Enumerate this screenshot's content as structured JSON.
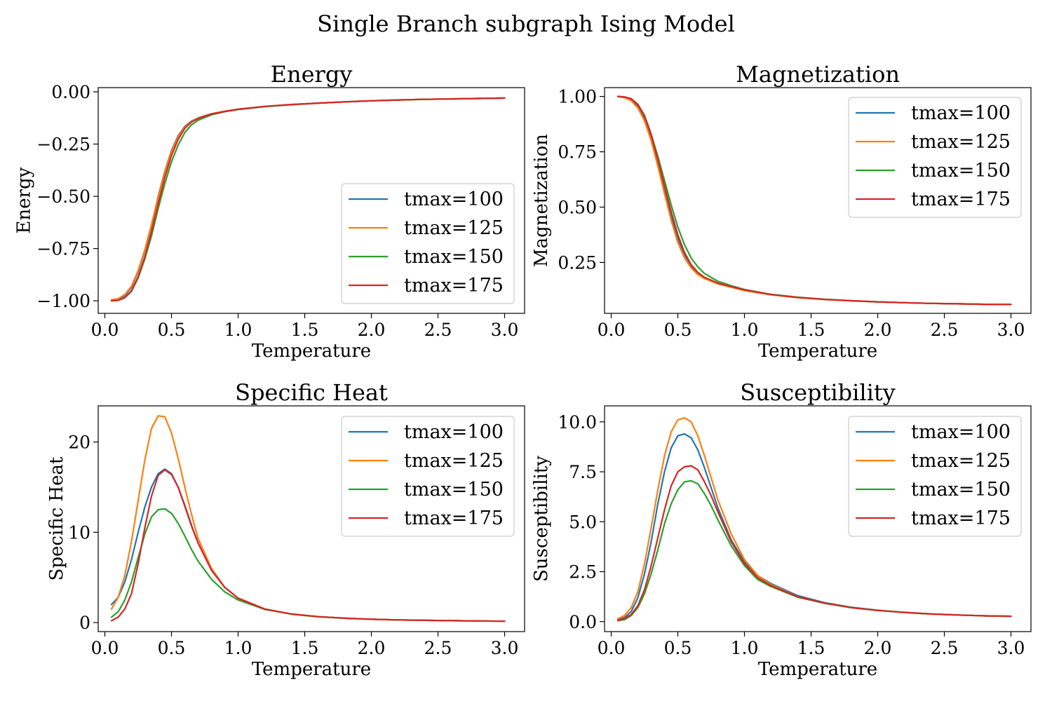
{
  "figure": {
    "title": "Single Branch subgraph Ising Model"
  },
  "colors": {
    "series": [
      "#1f77b4",
      "#ff7f0e",
      "#2ca02c",
      "#d62728"
    ]
  },
  "chart_data": [
    {
      "type": "line",
      "title": "Energy",
      "xlabel": "Temperature",
      "ylabel": "Energy",
      "xlim": [
        -0.05,
        3.15
      ],
      "ylim": [
        -1.06,
        0.02
      ],
      "xticks": [
        0.0,
        0.5,
        1.0,
        1.5,
        2.0,
        2.5,
        3.0
      ],
      "xtick_labels": [
        "0.0",
        "0.5",
        "1.0",
        "1.5",
        "2.0",
        "2.5",
        "3.0"
      ],
      "yticks": [
        0.0,
        -0.25,
        -0.5,
        -0.75,
        -1.0
      ],
      "ytick_labels": [
        "0.00",
        "−0.25",
        "−0.50",
        "−0.75",
        "−1.00"
      ],
      "legend": "lower-right",
      "grid": false,
      "x": [
        0.05,
        0.1,
        0.15,
        0.2,
        0.25,
        0.3,
        0.35,
        0.4,
        0.45,
        0.5,
        0.55,
        0.6,
        0.65,
        0.7,
        0.8,
        0.9,
        1.0,
        1.2,
        1.4,
        1.6,
        1.8,
        2.0,
        2.2,
        2.4,
        2.6,
        2.8,
        3.0
      ],
      "series": [
        {
          "name": "tmax=100",
          "values": [
            -1.0,
            -0.995,
            -0.975,
            -0.935,
            -0.86,
            -0.76,
            -0.64,
            -0.5,
            -0.38,
            -0.28,
            -0.21,
            -0.165,
            -0.14,
            -0.125,
            -0.105,
            -0.093,
            -0.083,
            -0.07,
            -0.061,
            -0.054,
            -0.048,
            -0.043,
            -0.039,
            -0.036,
            -0.034,
            -0.032,
            -0.03
          ]
        },
        {
          "name": "tmax=125",
          "values": [
            -0.995,
            -0.99,
            -0.97,
            -0.93,
            -0.855,
            -0.755,
            -0.635,
            -0.505,
            -0.385,
            -0.285,
            -0.215,
            -0.168,
            -0.142,
            -0.126,
            -0.105,
            -0.093,
            -0.083,
            -0.07,
            -0.061,
            -0.054,
            -0.048,
            -0.043,
            -0.039,
            -0.036,
            -0.034,
            -0.032,
            -0.03
          ]
        },
        {
          "name": "tmax=150",
          "values": [
            -1.0,
            -0.998,
            -0.985,
            -0.955,
            -0.89,
            -0.8,
            -0.69,
            -0.56,
            -0.44,
            -0.335,
            -0.255,
            -0.195,
            -0.158,
            -0.136,
            -0.11,
            -0.095,
            -0.085,
            -0.071,
            -0.062,
            -0.054,
            -0.048,
            -0.043,
            -0.039,
            -0.036,
            -0.034,
            -0.032,
            -0.03
          ]
        },
        {
          "name": "tmax=175",
          "values": [
            -1.0,
            -0.998,
            -0.985,
            -0.952,
            -0.885,
            -0.79,
            -0.67,
            -0.535,
            -0.41,
            -0.305,
            -0.228,
            -0.175,
            -0.145,
            -0.128,
            -0.106,
            -0.094,
            -0.084,
            -0.07,
            -0.061,
            -0.054,
            -0.048,
            -0.043,
            -0.039,
            -0.036,
            -0.034,
            -0.032,
            -0.03
          ]
        }
      ]
    },
    {
      "type": "line",
      "title": "Magnetization",
      "xlabel": "Temperature",
      "ylabel": "Magnetization",
      "xlim": [
        -0.05,
        3.15
      ],
      "ylim": [
        0.02,
        1.04
      ],
      "xticks": [
        0.0,
        0.5,
        1.0,
        1.5,
        2.0,
        2.5,
        3.0
      ],
      "xtick_labels": [
        "0.0",
        "0.5",
        "1.0",
        "1.5",
        "2.0",
        "2.5",
        "3.0"
      ],
      "yticks": [
        1.0,
        0.75,
        0.5,
        0.25
      ],
      "ytick_labels": [
        "1.00",
        "0.75",
        "0.50",
        "0.25"
      ],
      "legend": "upper-right",
      "grid": false,
      "x": [
        0.05,
        0.1,
        0.15,
        0.2,
        0.25,
        0.3,
        0.35,
        0.4,
        0.45,
        0.5,
        0.55,
        0.6,
        0.65,
        0.7,
        0.8,
        0.9,
        1.0,
        1.2,
        1.4,
        1.6,
        1.8,
        2.0,
        2.2,
        2.4,
        2.6,
        2.8,
        3.0
      ],
      "series": [
        {
          "name": "tmax=100",
          "values": [
            1.0,
            0.997,
            0.985,
            0.955,
            0.9,
            0.81,
            0.7,
            0.58,
            0.46,
            0.36,
            0.285,
            0.235,
            0.2,
            0.18,
            0.155,
            0.14,
            0.125,
            0.105,
            0.092,
            0.083,
            0.077,
            0.072,
            0.068,
            0.065,
            0.063,
            0.061,
            0.06
          ]
        },
        {
          "name": "tmax=125",
          "values": [
            1.0,
            0.995,
            0.98,
            0.948,
            0.89,
            0.8,
            0.685,
            0.56,
            0.44,
            0.34,
            0.27,
            0.225,
            0.195,
            0.177,
            0.153,
            0.138,
            0.123,
            0.104,
            0.091,
            0.083,
            0.077,
            0.072,
            0.068,
            0.065,
            0.063,
            0.061,
            0.06
          ]
        },
        {
          "name": "tmax=150",
          "values": [
            1.0,
            0.998,
            0.99,
            0.965,
            0.915,
            0.83,
            0.73,
            0.62,
            0.51,
            0.41,
            0.33,
            0.27,
            0.23,
            0.2,
            0.165,
            0.145,
            0.128,
            0.106,
            0.093,
            0.084,
            0.077,
            0.072,
            0.068,
            0.065,
            0.063,
            0.061,
            0.06
          ]
        },
        {
          "name": "tmax=175",
          "values": [
            1.0,
            0.998,
            0.99,
            0.962,
            0.91,
            0.825,
            0.715,
            0.595,
            0.48,
            0.375,
            0.295,
            0.24,
            0.205,
            0.183,
            0.157,
            0.141,
            0.126,
            0.105,
            0.092,
            0.083,
            0.077,
            0.072,
            0.068,
            0.065,
            0.063,
            0.061,
            0.06
          ]
        }
      ]
    },
    {
      "type": "line",
      "title": "Specific Heat",
      "xlabel": "Temperature",
      "ylabel": "Specific Heat",
      "xlim": [
        -0.05,
        3.15
      ],
      "ylim": [
        -1.0,
        24.0
      ],
      "xticks": [
        0.0,
        0.5,
        1.0,
        1.5,
        2.0,
        2.5,
        3.0
      ],
      "xtick_labels": [
        "0.0",
        "0.5",
        "1.0",
        "1.5",
        "2.0",
        "2.5",
        "3.0"
      ],
      "yticks": [
        0,
        10,
        20
      ],
      "ytick_labels": [
        "0",
        "10",
        "20"
      ],
      "legend": "upper-right",
      "grid": false,
      "x": [
        0.05,
        0.1,
        0.15,
        0.2,
        0.25,
        0.3,
        0.35,
        0.4,
        0.45,
        0.5,
        0.55,
        0.6,
        0.65,
        0.7,
        0.8,
        0.9,
        1.0,
        1.2,
        1.4,
        1.6,
        1.8,
        2.0,
        2.2,
        2.4,
        2.6,
        2.8,
        3.0
      ],
      "series": [
        {
          "name": "tmax=100",
          "values": [
            2.0,
            2.8,
            4.5,
            7.0,
            10.0,
            12.8,
            15.0,
            16.5,
            17.0,
            16.5,
            15.0,
            13.0,
            10.8,
            8.8,
            5.8,
            3.9,
            2.7,
            1.5,
            0.95,
            0.65,
            0.48,
            0.37,
            0.3,
            0.25,
            0.21,
            0.18,
            0.15
          ]
        },
        {
          "name": "tmax=125",
          "values": [
            1.5,
            2.8,
            5.2,
            9.0,
            13.5,
            18.0,
            21.5,
            22.9,
            22.8,
            21.0,
            18.2,
            15.0,
            12.0,
            9.3,
            6.0,
            3.9,
            2.7,
            1.5,
            0.95,
            0.65,
            0.48,
            0.37,
            0.3,
            0.25,
            0.21,
            0.18,
            0.15
          ]
        },
        {
          "name": "tmax=150",
          "values": [
            0.6,
            1.2,
            2.5,
            4.5,
            7.2,
            9.8,
            11.7,
            12.5,
            12.6,
            12.1,
            11.0,
            9.6,
            8.1,
            6.8,
            4.8,
            3.4,
            2.5,
            1.45,
            0.93,
            0.64,
            0.48,
            0.37,
            0.3,
            0.25,
            0.21,
            0.18,
            0.15
          ]
        },
        {
          "name": "tmax=175",
          "values": [
            0.2,
            0.6,
            1.5,
            3.2,
            6.5,
            10.5,
            14.0,
            16.3,
            16.9,
            16.4,
            15.0,
            12.9,
            10.7,
            8.8,
            5.8,
            3.9,
            2.7,
            1.5,
            0.95,
            0.65,
            0.48,
            0.37,
            0.3,
            0.25,
            0.21,
            0.18,
            0.15
          ]
        }
      ]
    },
    {
      "type": "line",
      "title": "Susceptibility",
      "xlabel": "Temperature",
      "ylabel": "Susceptibility",
      "xlim": [
        -0.05,
        3.15
      ],
      "ylim": [
        -0.5,
        10.8
      ],
      "xticks": [
        0.0,
        0.5,
        1.0,
        1.5,
        2.0,
        2.5,
        3.0
      ],
      "xtick_labels": [
        "0.0",
        "0.5",
        "1.0",
        "1.5",
        "2.0",
        "2.5",
        "3.0"
      ],
      "yticks": [
        0.0,
        2.5,
        5.0,
        7.5,
        10.0
      ],
      "ytick_labels": [
        "0.0",
        "2.5",
        "5.0",
        "7.5",
        "10.0"
      ],
      "legend": "upper-right",
      "grid": false,
      "x": [
        0.05,
        0.1,
        0.15,
        0.2,
        0.25,
        0.3,
        0.35,
        0.4,
        0.45,
        0.5,
        0.55,
        0.6,
        0.65,
        0.7,
        0.75,
        0.8,
        0.9,
        1.0,
        1.1,
        1.2,
        1.4,
        1.6,
        1.8,
        2.0,
        2.2,
        2.4,
        2.6,
        2.8,
        3.0
      ],
      "series": [
        {
          "name": "tmax=100",
          "values": [
            0.1,
            0.2,
            0.5,
            1.2,
            2.4,
            4.0,
            5.9,
            7.5,
            8.7,
            9.3,
            9.4,
            9.2,
            8.6,
            7.7,
            6.7,
            5.7,
            4.1,
            3.0,
            2.3,
            1.9,
            1.3,
            0.95,
            0.72,
            0.57,
            0.46,
            0.38,
            0.33,
            0.29,
            0.27
          ]
        },
        {
          "name": "tmax=125",
          "values": [
            0.15,
            0.3,
            0.7,
            1.5,
            2.9,
            4.7,
            6.6,
            8.3,
            9.5,
            10.1,
            10.2,
            10.0,
            9.3,
            8.3,
            7.2,
            6.1,
            4.4,
            3.1,
            2.3,
            1.85,
            1.25,
            0.92,
            0.7,
            0.56,
            0.46,
            0.38,
            0.33,
            0.29,
            0.27
          ]
        },
        {
          "name": "tmax=150",
          "values": [
            0.05,
            0.1,
            0.3,
            0.7,
            1.4,
            2.4,
            3.6,
            4.9,
            5.9,
            6.6,
            7.0,
            7.05,
            6.9,
            6.4,
            5.8,
            5.1,
            3.8,
            2.8,
            2.1,
            1.75,
            1.22,
            0.92,
            0.7,
            0.56,
            0.46,
            0.38,
            0.33,
            0.29,
            0.27
          ]
        },
        {
          "name": "tmax=175",
          "values": [
            0.05,
            0.15,
            0.35,
            0.8,
            1.6,
            2.8,
            4.2,
            5.6,
            6.8,
            7.5,
            7.75,
            7.8,
            7.6,
            7.0,
            6.3,
            5.5,
            4.0,
            2.9,
            2.2,
            1.8,
            1.25,
            0.93,
            0.7,
            0.56,
            0.46,
            0.38,
            0.33,
            0.29,
            0.27
          ]
        }
      ]
    }
  ]
}
